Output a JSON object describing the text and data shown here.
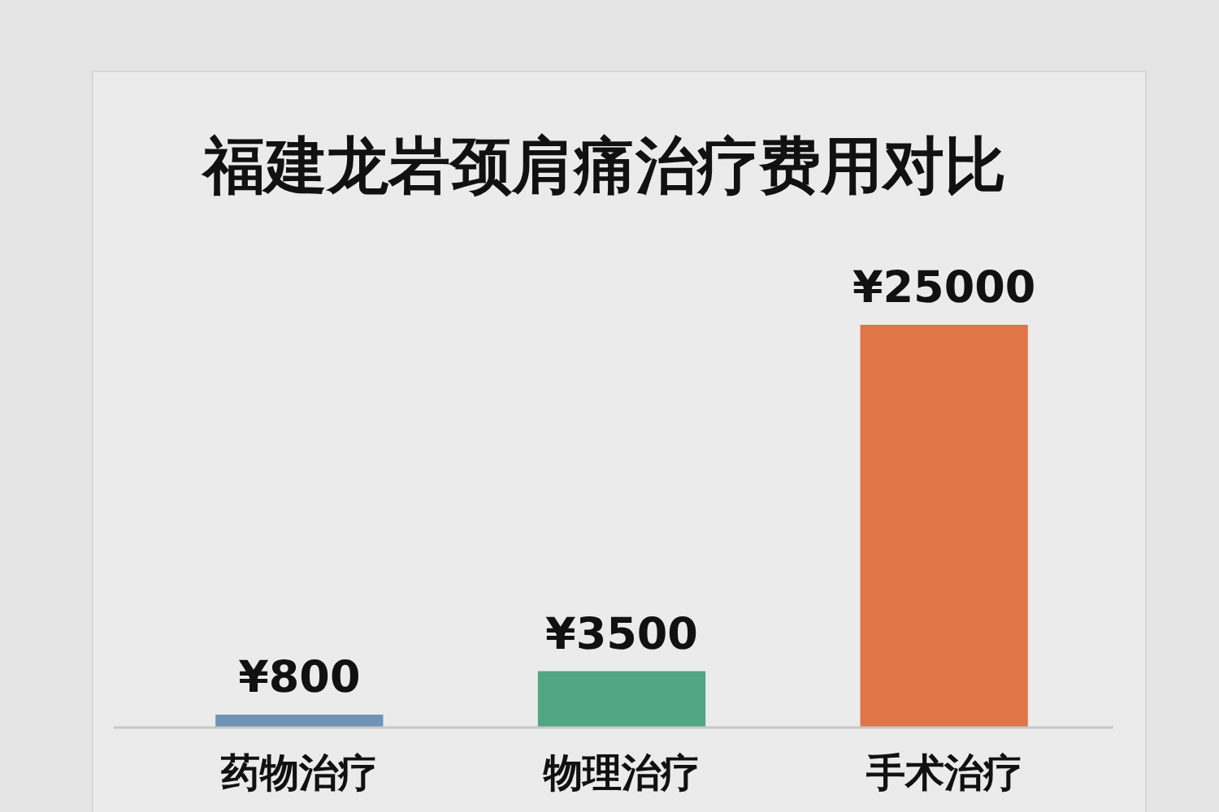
{
  "chart_data": {
    "type": "bar",
    "title": "福建龙岩颈肩痛治疗费用对比",
    "categories": [
      "药物治疗",
      "物理治疗",
      "手术治疗"
    ],
    "values": [
      800,
      3500,
      25000
    ],
    "colors": [
      "#6f93b5",
      "#52a683",
      "#e07548"
    ],
    "value_labels": [
      "¥800",
      "¥3500",
      "¥25000"
    ]
  }
}
